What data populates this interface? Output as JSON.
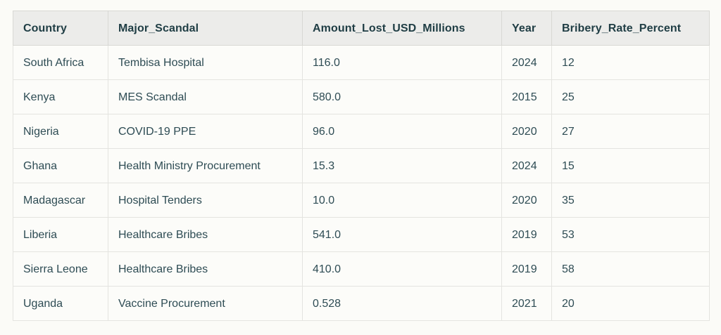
{
  "page": {
    "background": "#fbfbf7"
  },
  "colors": {
    "page_background": "#fbfbf7",
    "cell_background": "#fcfcf9",
    "header_background": "#ececea",
    "outer_border": "#d9d9d5",
    "inner_border": "#e4e4e0",
    "body_text": "#2e4c54",
    "header_text": "#1f3d44"
  },
  "table": {
    "columns": [
      "Country",
      "Major_Scandal",
      "Amount_Lost_USD_Millions",
      "Year",
      "Bribery_Rate_Percent"
    ],
    "rows": [
      {
        "country": "South Africa",
        "major_scandal": "Tembisa Hospital",
        "amount_lost_usd_millions": "116.0",
        "year": "2024",
        "bribery_rate_percent": "12"
      },
      {
        "country": "Kenya",
        "major_scandal": "MES Scandal",
        "amount_lost_usd_millions": "580.0",
        "year": "2015",
        "bribery_rate_percent": "25"
      },
      {
        "country": "Nigeria",
        "major_scandal": "COVID-19 PPE",
        "amount_lost_usd_millions": "96.0",
        "year": "2020",
        "bribery_rate_percent": "27"
      },
      {
        "country": "Ghana",
        "major_scandal": "Health Ministry Procurement",
        "amount_lost_usd_millions": "15.3",
        "year": "2024",
        "bribery_rate_percent": "15"
      },
      {
        "country": "Madagascar",
        "major_scandal": "Hospital Tenders",
        "amount_lost_usd_millions": "10.0",
        "year": "2020",
        "bribery_rate_percent": "35"
      },
      {
        "country": "Liberia",
        "major_scandal": "Healthcare Bribes",
        "amount_lost_usd_millions": "541.0",
        "year": "2019",
        "bribery_rate_percent": "53"
      },
      {
        "country": "Sierra Leone",
        "major_scandal": "Healthcare Bribes",
        "amount_lost_usd_millions": "410.0",
        "year": "2019",
        "bribery_rate_percent": "58"
      },
      {
        "country": "Uganda",
        "major_scandal": "Vaccine Procurement",
        "amount_lost_usd_millions": "0.528",
        "year": "2021",
        "bribery_rate_percent": "20"
      }
    ]
  },
  "chart_data": {
    "type": "table",
    "title": "",
    "columns": [
      "Country",
      "Major_Scandal",
      "Amount_Lost_USD_Millions",
      "Year",
      "Bribery_Rate_Percent"
    ],
    "rows": [
      [
        "South Africa",
        "Tembisa Hospital",
        116.0,
        2024,
        12
      ],
      [
        "Kenya",
        "MES Scandal",
        580.0,
        2015,
        25
      ],
      [
        "Nigeria",
        "COVID-19 PPE",
        96.0,
        2020,
        27
      ],
      [
        "Ghana",
        "Health Ministry Procurement",
        15.3,
        2024,
        15
      ],
      [
        "Madagascar",
        "Hospital Tenders",
        10.0,
        2020,
        35
      ],
      [
        "Liberia",
        "Healthcare Bribes",
        541.0,
        2019,
        53
      ],
      [
        "Sierra Leone",
        "Healthcare Bribes",
        410.0,
        2019,
        58
      ],
      [
        "Uganda",
        "Vaccine Procurement",
        0.528,
        2021,
        20
      ]
    ]
  }
}
